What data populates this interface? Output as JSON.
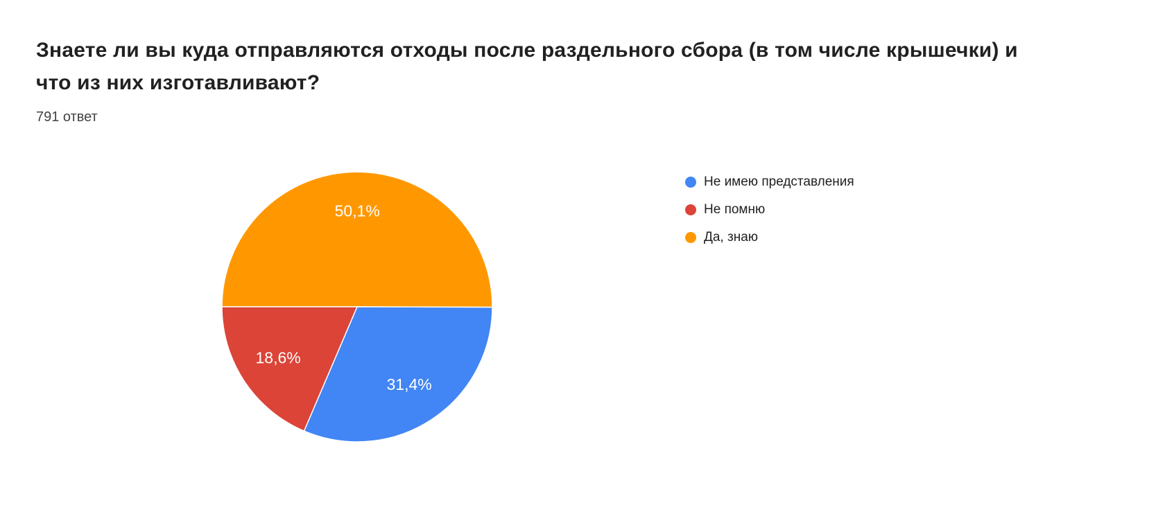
{
  "page": {
    "background_color": "#ffffff"
  },
  "question": {
    "title": "Знаете ли вы куда отправляются отходы после раздельного сбора (в том числе крышечки) и что из них изготавливают?",
    "responses_label": "791 ответ"
  },
  "chart_data": {
    "type": "pie",
    "title": "Знаете ли вы куда отправляются отходы после раздельного сбора (в том числе крышечки) и что из них изготавливают?",
    "subtitle": "791 ответ",
    "legend_position": "right",
    "slices": [
      {
        "label": "Не имею представления",
        "value_percent": 31.4,
        "display": "31,4%",
        "color": "#4285F4"
      },
      {
        "label": "Не помню",
        "value_percent": 18.6,
        "display": "18,6%",
        "color": "#DB4437"
      },
      {
        "label": "Да, знаю",
        "value_percent": 50.1,
        "display": "50,1%",
        "color": "#FF9800"
      }
    ],
    "render": {
      "start_angle_deg": 270,
      "clockwise_order": [
        2,
        0,
        1
      ],
      "label_radius": 0.7,
      "slice_border_color": "#ffffff",
      "slice_label_color": "#ffffff"
    }
  }
}
